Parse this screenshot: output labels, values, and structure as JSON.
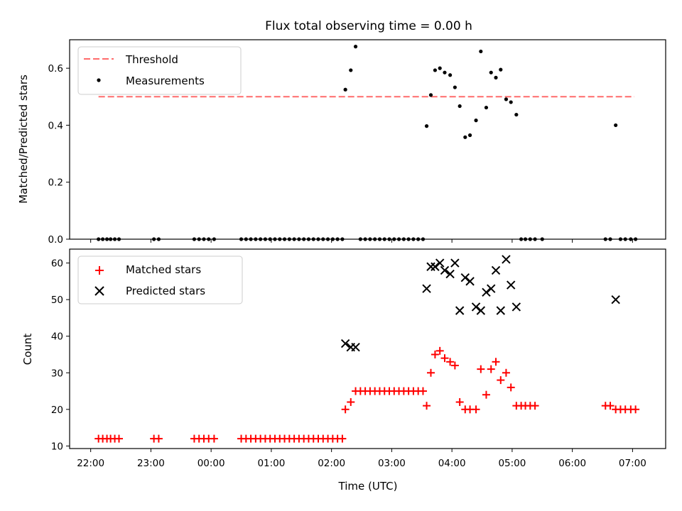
{
  "chart_data": [
    {
      "type": "scatter",
      "title": "Flux total observing time = 0.00 h",
      "xlabel": "",
      "ylabel": "Matched/Predicted stars",
      "ylim": [
        0.0,
        0.7
      ],
      "xlim": [
        21.65,
        31.55
      ],
      "yticks": [
        0.0,
        0.2,
        0.4,
        0.6
      ],
      "ytick_labels": [
        "0.0",
        "0.2",
        "0.4",
        "0.6"
      ],
      "legend": {
        "position": "upper-left",
        "entries": [
          "Threshold",
          "Measurements"
        ]
      },
      "series": [
        {
          "name": "Threshold",
          "kind": "line",
          "color": "#ff6b6b",
          "x": [
            22.13,
            31.03
          ],
          "y": [
            0.5,
            0.5
          ]
        },
        {
          "name": "Measurements",
          "kind": "scatter",
          "color": "#000000",
          "x": [
            22.13,
            22.2,
            22.27,
            22.33,
            22.4,
            22.47,
            23.05,
            23.13,
            23.72,
            23.8,
            23.88,
            23.96,
            24.05,
            24.5,
            24.58,
            24.66,
            24.74,
            24.82,
            24.9,
            24.98,
            25.06,
            25.14,
            25.22,
            25.3,
            25.38,
            25.46,
            25.54,
            25.62,
            25.7,
            25.78,
            25.86,
            25.94,
            26.02,
            26.1,
            26.18,
            26.23,
            26.32,
            26.4,
            26.48,
            26.56,
            26.64,
            26.72,
            26.8,
            26.88,
            26.96,
            27.04,
            27.12,
            27.2,
            27.28,
            27.36,
            27.44,
            27.52,
            27.58,
            27.65,
            27.72,
            27.8,
            27.88,
            27.97,
            28.05,
            28.13,
            28.22,
            28.3,
            28.4,
            28.48,
            28.57,
            28.65,
            28.73,
            28.81,
            28.9,
            28.98,
            29.07,
            29.15,
            29.22,
            29.3,
            29.38,
            29.5,
            30.55,
            30.63,
            30.72,
            30.8,
            30.88,
            30.97,
            31.05
          ],
          "y": [
            0,
            0,
            0,
            0,
            0,
            0,
            0,
            0,
            0,
            0,
            0,
            0,
            0,
            0,
            0,
            0,
            0,
            0,
            0,
            0,
            0,
            0,
            0,
            0,
            0,
            0,
            0,
            0,
            0,
            0,
            0,
            0,
            0,
            0,
            0,
            0.525,
            0.593,
            0.676,
            0,
            0,
            0,
            0,
            0,
            0,
            0,
            0,
            0,
            0,
            0,
            0,
            0,
            0,
            0.397,
            0.506,
            0.593,
            0.6,
            0.585,
            0.576,
            0.533,
            0.467,
            0.358,
            0.365,
            0.417,
            0.659,
            0.462,
            0.585,
            0.567,
            0.595,
            0.491,
            0.481,
            0.437,
            0,
            0,
            0,
            0,
            0,
            0,
            0,
            0.4,
            0,
            0,
            0,
            0
          ]
        }
      ]
    },
    {
      "type": "scatter",
      "title": "",
      "xlabel": "Time (UTC)",
      "ylabel": "Count",
      "ylim": [
        9.3,
        63.8
      ],
      "xlim": [
        21.65,
        31.55
      ],
      "yticks": [
        10,
        20,
        30,
        40,
        50,
        60
      ],
      "ytick_labels": [
        "10",
        "20",
        "30",
        "40",
        "50",
        "60"
      ],
      "xticks": [
        22,
        23,
        24,
        25,
        26,
        27,
        28,
        29,
        30,
        31
      ],
      "xtick_labels": [
        "22:00",
        "23:00",
        "00:00",
        "01:00",
        "02:00",
        "03:00",
        "04:00",
        "05:00",
        "06:00",
        "07:00"
      ],
      "legend": {
        "position": "upper-left",
        "entries": [
          "Matched stars",
          "Predicted stars"
        ]
      },
      "series": [
        {
          "name": "Matched stars",
          "kind": "plus",
          "color": "#ff0000",
          "x": [
            22.13,
            22.2,
            22.27,
            22.33,
            22.4,
            22.47,
            23.05,
            23.13,
            23.72,
            23.8,
            23.88,
            23.96,
            24.05,
            24.5,
            24.58,
            24.66,
            24.74,
            24.82,
            24.9,
            24.98,
            25.06,
            25.14,
            25.22,
            25.3,
            25.38,
            25.46,
            25.54,
            25.62,
            25.7,
            25.78,
            25.86,
            25.94,
            26.02,
            26.1,
            26.18,
            26.23,
            26.32,
            26.4,
            26.48,
            26.56,
            26.64,
            26.72,
            26.8,
            26.88,
            26.96,
            27.04,
            27.12,
            27.2,
            27.28,
            27.36,
            27.44,
            27.52,
            27.58,
            27.65,
            27.72,
            27.8,
            27.88,
            27.97,
            28.05,
            28.13,
            28.22,
            28.3,
            28.4,
            28.48,
            28.57,
            28.65,
            28.73,
            28.81,
            28.9,
            28.98,
            29.07,
            29.15,
            29.22,
            29.3,
            29.38,
            30.55,
            30.63,
            30.72,
            30.8,
            30.88,
            30.97,
            31.05
          ],
          "y": [
            12,
            12,
            12,
            12,
            12,
            12,
            12,
            12,
            12,
            12,
            12,
            12,
            12,
            12,
            12,
            12,
            12,
            12,
            12,
            12,
            12,
            12,
            12,
            12,
            12,
            12,
            12,
            12,
            12,
            12,
            12,
            12,
            12,
            12,
            12,
            20,
            22,
            25,
            25,
            25,
            25,
            25,
            25,
            25,
            25,
            25,
            25,
            25,
            25,
            25,
            25,
            25,
            21,
            30,
            35,
            36,
            34,
            33,
            32,
            22,
            20,
            20,
            20,
            31,
            24,
            31,
            33,
            28,
            30,
            26,
            21,
            21,
            21,
            21,
            21,
            21,
            21,
            20,
            20,
            20,
            20,
            20
          ]
        },
        {
          "name": "Predicted stars",
          "kind": "x",
          "color": "#000000",
          "x": [
            26.23,
            26.32,
            26.4,
            27.58,
            27.65,
            27.72,
            27.8,
            27.88,
            27.97,
            28.05,
            28.13,
            28.22,
            28.3,
            28.4,
            28.48,
            28.57,
            28.65,
            28.73,
            28.81,
            28.9,
            28.98,
            29.07,
            30.72
          ],
          "y": [
            38,
            37,
            37,
            53,
            59,
            59,
            60,
            58,
            57,
            60,
            47,
            56,
            55,
            48,
            47,
            52,
            53,
            58,
            47,
            61,
            54,
            48,
            50
          ]
        }
      ]
    }
  ]
}
